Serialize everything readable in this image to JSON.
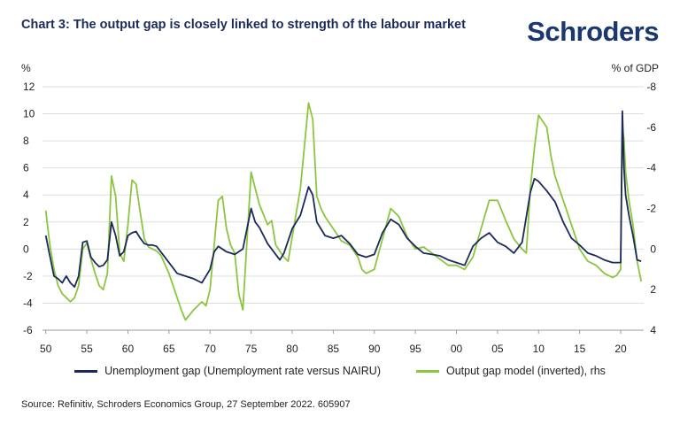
{
  "header": {
    "title": "Chart 3: The output gap is closely linked to strength of the labour market",
    "logo": "Schroders"
  },
  "units": {
    "left": "%",
    "right": "% of GDP"
  },
  "source": "Source: Refinitiv, Schroders Economics Group, 27 September 2022. 605907",
  "colors": {
    "unemployment": "#1b2a59",
    "output_gap": "#8cc63f",
    "grid": "#dddddd"
  },
  "chart_data": {
    "type": "line",
    "title": "Chart 3: The output gap is closely linked to strength of the labour market",
    "xlabel": "",
    "ylabel": "%",
    "y2label": "% of GDP",
    "xlim": [
      1949.6,
      2022.8
    ],
    "ylim": [
      -6,
      12
    ],
    "y2lim": [
      4,
      -8
    ],
    "y2_inverted": true,
    "grid": true,
    "legend_position": "bottom",
    "x_tick_labels": [
      "50",
      "55",
      "60",
      "65",
      "70",
      "75",
      "80",
      "85",
      "90",
      "95",
      "00",
      "05",
      "10",
      "15",
      "20"
    ],
    "x_tick_values": [
      1950,
      1955,
      1960,
      1965,
      1970,
      1975,
      1980,
      1985,
      1990,
      1995,
      2000,
      2005,
      2010,
      2015,
      2020
    ],
    "y_ticks": [
      12,
      10,
      8,
      6,
      4,
      2,
      0,
      -2,
      -4,
      -6
    ],
    "y2_ticks": [
      -8,
      -6,
      -4,
      -2,
      0,
      2,
      4
    ],
    "series": [
      {
        "name": "Unemployment gap (Unemployment rate versus NAIRU)",
        "axis": "left",
        "x": [
          1950,
          1950.5,
          1951,
          1951.5,
          1952,
          1952.5,
          1953,
          1953.5,
          1954,
          1954.5,
          1955,
          1955.5,
          1956,
          1956.5,
          1957,
          1957.5,
          1958,
          1958.5,
          1959,
          1959.5,
          1960,
          1960.5,
          1961,
          1961.5,
          1962,
          1962.5,
          1963,
          1963.5,
          1964,
          1965,
          1966,
          1967,
          1968,
          1969,
          1970,
          1970.5,
          1971,
          1972,
          1973,
          1974,
          1975,
          1975.5,
          1976,
          1977,
          1978,
          1978.5,
          1979,
          1980,
          1981,
          1982,
          1982.5,
          1983,
          1984,
          1985,
          1986,
          1987,
          1988,
          1989,
          1990,
          1991,
          1992,
          1993,
          1994,
          1995,
          1996,
          1997,
          1998,
          1999,
          2000,
          2001,
          2002,
          2003,
          2004,
          2005,
          2006,
          2007,
          2008,
          2009,
          2009.5,
          2010,
          2011,
          2012,
          2013,
          2014,
          2015,
          2016,
          2017,
          2018,
          2019,
          2020,
          2020.2,
          2020.4,
          2020.6,
          2021,
          2021.5,
          2022,
          2022.5
        ],
        "values": [
          1.0,
          -0.5,
          -2.0,
          -2.2,
          -2.5,
          -2.0,
          -2.5,
          -2.8,
          -2.0,
          0.5,
          0.6,
          -0.6,
          -1.0,
          -1.3,
          -1.2,
          -0.8,
          2.0,
          1.0,
          -0.5,
          -0.2,
          1.0,
          1.2,
          1.3,
          0.8,
          0.4,
          0.3,
          0.3,
          0.2,
          -0.2,
          -1.0,
          -1.8,
          -2.0,
          -2.2,
          -2.5,
          -1.5,
          -0.2,
          0.2,
          -0.2,
          -0.4,
          0.0,
          3.0,
          2.0,
          1.6,
          0.4,
          -0.4,
          -0.8,
          -0.3,
          1.5,
          2.5,
          4.6,
          4.0,
          2.0,
          1.0,
          0.8,
          1.0,
          0.4,
          -0.4,
          -0.6,
          -0.4,
          1.2,
          2.2,
          1.8,
          0.8,
          0.2,
          -0.3,
          -0.4,
          -0.5,
          -0.8,
          -1.0,
          -1.2,
          0.2,
          0.8,
          1.2,
          0.5,
          0.2,
          -0.3,
          0.5,
          4.2,
          5.2,
          5.0,
          4.3,
          3.5,
          2.0,
          0.8,
          0.3,
          -0.3,
          -0.5,
          -0.8,
          -1.0,
          -1.0,
          10.2,
          6.0,
          4.0,
          2.5,
          1.0,
          -0.8,
          -0.9
        ]
      },
      {
        "name": "Output gap model (inverted), rhs",
        "axis": "right",
        "x": [
          1950,
          1950.5,
          1951,
          1951.5,
          1952,
          1952.5,
          1953,
          1953.5,
          1954,
          1954.5,
          1955,
          1955.5,
          1956,
          1956.5,
          1957,
          1957.5,
          1958,
          1958.5,
          1959,
          1959.5,
          1960,
          1960.5,
          1961,
          1961.5,
          1962,
          1962.5,
          1963,
          1963.5,
          1964,
          1965,
          1966,
          1966.5,
          1967,
          1968,
          1969,
          1969.5,
          1970,
          1970.5,
          1971,
          1971.5,
          1972,
          1972.5,
          1973,
          1973.5,
          1974,
          1975,
          1975.5,
          1976,
          1977,
          1977.5,
          1978,
          1979,
          1979.5,
          1980,
          1981,
          1982,
          1982.5,
          1983,
          1983.5,
          1984,
          1985,
          1986,
          1987,
          1988,
          1988.5,
          1989,
          1990,
          1991,
          1992,
          1993,
          1994,
          1995,
          1996,
          1997,
          1998,
          1999,
          2000,
          2001,
          2002,
          2003,
          2004,
          2005,
          2006,
          2007,
          2008,
          2008.5,
          2009,
          2009.5,
          2010,
          2011,
          2011.5,
          2012,
          2013,
          2014,
          2015,
          2016,
          2017,
          2018,
          2019,
          2019.5,
          2020,
          2020.2,
          2020.4,
          2020.6,
          2021,
          2021.5,
          2022,
          2022.5
        ],
        "values": [
          -1.9,
          -0.2,
          1.0,
          1.8,
          2.2,
          2.4,
          2.6,
          2.4,
          1.8,
          0.0,
          -0.3,
          0.5,
          1.2,
          1.8,
          2.0,
          1.2,
          -3.6,
          -2.6,
          0.2,
          0.6,
          -1.2,
          -3.4,
          -3.2,
          -1.8,
          -0.5,
          -0.1,
          0.0,
          0.1,
          0.3,
          1.2,
          2.4,
          3.0,
          3.5,
          3.0,
          2.6,
          2.8,
          2.0,
          -0.2,
          -2.4,
          -2.6,
          -1.0,
          -0.2,
          0.2,
          2.2,
          3.0,
          -3.8,
          -3.0,
          -2.2,
          -1.2,
          -1.4,
          -0.2,
          0.4,
          0.6,
          -0.6,
          -3.0,
          -7.2,
          -6.4,
          -2.6,
          -2.0,
          -1.6,
          -1.0,
          -0.4,
          -0.2,
          0.4,
          1.0,
          1.2,
          1.0,
          -0.5,
          -2.0,
          -1.6,
          -0.6,
          0.0,
          -0.1,
          0.2,
          0.5,
          0.8,
          0.8,
          1.0,
          0.4,
          -1.0,
          -2.4,
          -2.4,
          -1.4,
          -0.5,
          0.0,
          0.2,
          -3.0,
          -5.0,
          -6.6,
          -6.0,
          -4.6,
          -3.6,
          -2.4,
          -1.2,
          0.0,
          0.6,
          0.8,
          1.2,
          1.4,
          1.3,
          1.0,
          -6.0,
          -5.4,
          -3.8,
          -2.4,
          -1.2,
          0.6,
          1.6
        ]
      }
    ]
  }
}
